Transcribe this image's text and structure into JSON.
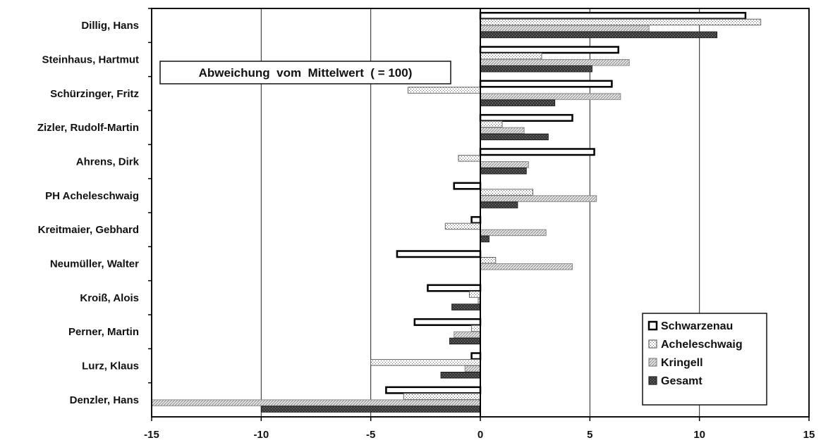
{
  "chart_data": {
    "type": "bar",
    "orientation": "horizontal",
    "categories": [
      "Dillig, Hans",
      "Steinhaus, Hartmut",
      "Schürzinger, Fritz",
      "Zizler, Rudolf-Martin",
      "Ahrens, Dirk",
      "PH Acheleschwaig",
      "Kreitmaier, Gebhard",
      "Neumüller, Walter",
      "Kroiß, Alois",
      "Perner, Martin",
      "Lurz, Klaus",
      "Denzler, Hans"
    ],
    "series": [
      {
        "name": "Schwarzenau",
        "values": [
          12.1,
          6.3,
          6.0,
          4.2,
          5.2,
          -1.2,
          -0.4,
          -3.8,
          -2.4,
          -3.0,
          -0.4,
          -4.3
        ]
      },
      {
        "name": "Acheleschwaig",
        "values": [
          12.8,
          2.8,
          -3.3,
          1.0,
          -1.0,
          2.4,
          -1.6,
          0.7,
          -0.5,
          -0.4,
          -5.0,
          -3.5
        ]
      },
      {
        "name": "Kringell",
        "values": [
          7.7,
          6.8,
          6.4,
          2.0,
          2.2,
          5.3,
          3.0,
          4.2,
          -0.1,
          -1.2,
          -0.7,
          -15.0
        ]
      },
      {
        "name": "Gesamt",
        "values": [
          10.8,
          5.1,
          3.4,
          3.1,
          2.1,
          1.7,
          0.4,
          0.0,
          -1.3,
          -1.4,
          -1.8,
          -10.0
        ]
      }
    ],
    "xlim": [
      -15,
      15
    ],
    "xticks": [
      "-15",
      "-10",
      "-5",
      "0",
      "5",
      "10",
      "15"
    ],
    "annotation": "Abweichung  vom  Mittelwert  ( = 100)",
    "legend_position": "bottom-right",
    "grid": true
  },
  "colors": {
    "frame": "#111111",
    "grid": "#222222",
    "bar_fill_dark": "#3a3a3a",
    "bar_fill_light": "#cfcfcf",
    "background": "#ffffff"
  }
}
